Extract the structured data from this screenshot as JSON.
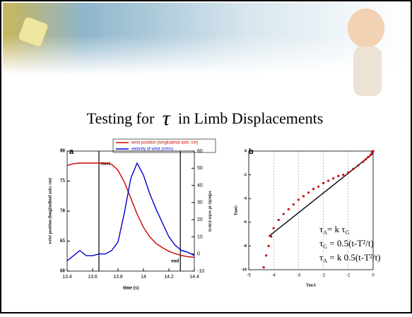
{
  "slide_title": [
    "Testing for",
    "τ",
    "in Limb Displacements"
  ],
  "chart_data": [
    {
      "type": "line",
      "panel": "a",
      "x": [
        13.4,
        13.45,
        13.5,
        13.55,
        13.6,
        13.65,
        13.7,
        13.75,
        13.8,
        13.85,
        13.9,
        13.95,
        14.0,
        14.05,
        14.1,
        14.15,
        14.2,
        14.25,
        14.3,
        14.35,
        14.4
      ],
      "series": [
        {
          "name": "wrist position (longitudinal axis; cm)",
          "color": "#cc0000",
          "values": [
            77.6,
            77.9,
            78,
            78,
            78,
            78,
            78,
            77.8,
            76.8,
            74.8,
            72.2,
            69.5,
            67.3,
            65.7,
            64.6,
            63.9,
            63.3,
            62.9,
            62.6,
            62.4,
            62.3
          ]
        },
        {
          "name": "velocity of wrist (cm/s)",
          "color": "#0000cc",
          "axis": "y2",
          "values": [
            -4,
            -1,
            2,
            -1,
            -1,
            0,
            0,
            2,
            7,
            24,
            44,
            53,
            46,
            35,
            26,
            18,
            10,
            5,
            2,
            1,
            -1
          ]
        }
      ],
      "markers": [
        {
          "x": 13.65,
          "label": "start"
        },
        {
          "x": 14.29,
          "label": "end"
        }
      ],
      "xlabel": "time (s)",
      "ylabel": "wrist position (longitudinal axis; cm)",
      "y2label": "velocity of wrist (cm/s)",
      "xlim": [
        13.4,
        14.4
      ],
      "xticks": [
        13.4,
        13.6,
        13.8,
        14,
        14.2,
        14.4
      ],
      "ylim": [
        60,
        80
      ],
      "yticks": [
        60,
        65,
        70,
        75,
        80
      ],
      "y2lim": [
        -10,
        60
      ],
      "y2ticks": [
        -10,
        0,
        10,
        20,
        30,
        40,
        50,
        60
      ]
    },
    {
      "type": "scatter",
      "panel": "b",
      "x": [
        -4.4,
        -4.3,
        -4.2,
        -4.1,
        -4,
        -3.8,
        -3.6,
        -3.4,
        -3.2,
        -3,
        -2.8,
        -2.6,
        -2.4,
        -2.2,
        -2,
        -1.8,
        -1.6,
        -1.4,
        -1.2,
        -1,
        -0.8,
        -0.6,
        -0.4,
        -0.3,
        -0.2,
        -0.1,
        -0.05,
        0
      ],
      "series": [
        {
          "color": "#cc0000",
          "values": [
            -9.8,
            -8.8,
            -8,
            -7.2,
            -6.5,
            -5.8,
            -5.3,
            -4.9,
            -4.5,
            -4.1,
            -3.8,
            -3.5,
            -3.2,
            -3,
            -2.7,
            -2.5,
            -2.3,
            -2.1,
            -2,
            -1.8,
            -1.5,
            -1.2,
            -0.9,
            -0.7,
            -0.5,
            -0.3,
            -0.1,
            0
          ]
        }
      ],
      "fit_line": {
        "color": "#000000",
        "x": [
          -4.2,
          0
        ],
        "y": [
          -7.2,
          -0.2
        ]
      },
      "equations": [
        [
          "τ",
          "A",
          "= k τ",
          "G"
        ],
        [
          "τ",
          "G",
          " = 0.5(t-T²/t)"
        ],
        [
          "τ",
          "A",
          " = k 0.5(t-T²/t)"
        ]
      ],
      "xlabel": "TauA",
      "ylabel": "TauG",
      "grid": true,
      "xlim": [
        -5,
        0
      ],
      "xticks": [
        -5,
        -4,
        -3,
        -2,
        -1,
        0
      ],
      "ylim": [
        -10,
        0
      ],
      "yticks": [
        -10,
        -8,
        -6,
        -4,
        -2,
        0
      ]
    }
  ]
}
